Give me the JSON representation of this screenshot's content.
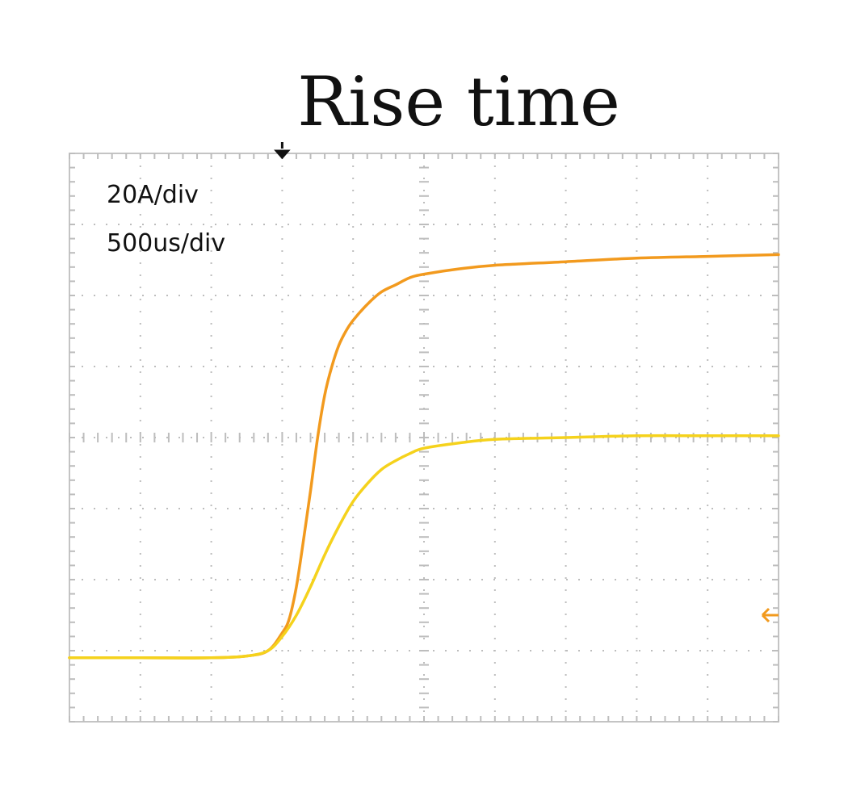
{
  "chart_data": {
    "type": "line",
    "title": "Rise time",
    "annotations": {
      "vertical_scale": "20A/div",
      "horizontal_scale": "500us/div"
    },
    "units": {
      "x": "us",
      "y": "A"
    },
    "divisions": {
      "x": 10,
      "y": 8
    },
    "xlim": [
      -1500,
      3500
    ],
    "ylim": [
      -100,
      60
    ],
    "trigger_position_x": 0,
    "ground_marker_y": -70,
    "grid": true,
    "legend": "none",
    "series": [
      {
        "color": "#f29a1e",
        "x": [
          -1500,
          -1000,
          -500,
          -250,
          -100,
          0,
          50,
          100,
          150,
          200,
          250,
          300,
          350,
          400,
          450,
          500,
          600,
          700,
          800,
          900,
          1000,
          1250,
          1500,
          2000,
          2500,
          3000,
          3500
        ],
        "y": [
          -82,
          -82,
          -82,
          -81.5,
          -80,
          -75,
          -71,
          -62,
          -49,
          -35,
          -20,
          -8,
          0,
          6,
          10,
          13,
          17.5,
          21,
          23,
          25,
          26,
          27.5,
          28.5,
          29.5,
          30.5,
          31,
          31.5
        ]
      },
      {
        "color": "#f5d21c",
        "x": [
          -1500,
          -1000,
          -500,
          -250,
          -100,
          0,
          100,
          200,
          300,
          400,
          500,
          600,
          700,
          800,
          900,
          1000,
          1250,
          1500,
          2000,
          2500,
          3000,
          3500
        ],
        "y": [
          -82,
          -82,
          -82,
          -81.5,
          -80,
          -76,
          -70,
          -62,
          -53,
          -45,
          -38,
          -33,
          -29,
          -26.5,
          -24.5,
          -23,
          -21.5,
          -20.5,
          -20,
          -19.5,
          -19.5,
          -19.5
        ]
      }
    ]
  }
}
